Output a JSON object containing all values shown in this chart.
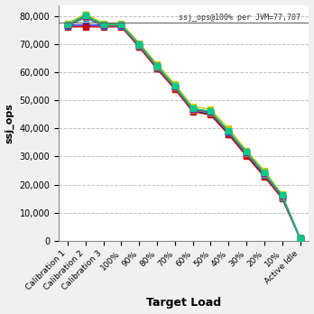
{
  "x_labels": [
    "Calibration 1",
    "Calibration 2",
    "Calibration 3",
    "100%",
    "90%",
    "80%",
    "70%",
    "60%",
    "50%",
    "40%",
    "30%",
    "20%",
    "10%",
    "Active Idle"
  ],
  "reference_line": 77707,
  "reference_label": "ssj_ops@100% per JVM=77,707",
  "ylabel": "ssj_ops",
  "xlabel": "Target Load",
  "ylim": [
    0,
    84000
  ],
  "yticks": [
    0,
    10000,
    20000,
    30000,
    40000,
    50000,
    60000,
    70000,
    80000
  ],
  "series": [
    {
      "color": "#0000cc",
      "values": [
        76800,
        76800,
        76800,
        76800,
        69200,
        61500,
        54200,
        46200,
        45200,
        38000,
        30500,
        23200,
        15200,
        800
      ]
    },
    {
      "color": "#cc0000",
      "values": [
        76200,
        76200,
        76200,
        76200,
        69000,
        61200,
        54000,
        46000,
        44800,
        37800,
        30200,
        22800,
        15000,
        750
      ]
    },
    {
      "color": "#00aa00",
      "values": [
        77200,
        80500,
        77200,
        77200,
        69800,
        62000,
        55000,
        47000,
        46000,
        39000,
        31500,
        24200,
        16000,
        900
      ]
    },
    {
      "color": "#cccc00",
      "values": [
        77500,
        80800,
        77500,
        77500,
        70500,
        63000,
        55800,
        47800,
        46800,
        40000,
        32200,
        25000,
        16500,
        950
      ]
    },
    {
      "color": "#0088cc",
      "values": [
        76500,
        79500,
        76500,
        76500,
        69500,
        61800,
        54500,
        46500,
        45500,
        38500,
        31000,
        23500,
        15500,
        820
      ]
    },
    {
      "color": "#cc8800",
      "values": [
        76700,
        79800,
        76700,
        76700,
        69700,
        62000,
        54700,
        46700,
        45700,
        38700,
        31200,
        23800,
        15800,
        860
      ]
    },
    {
      "color": "#8800cc",
      "values": [
        76900,
        80000,
        76900,
        76900,
        69900,
        62200,
        54900,
        46900,
        45900,
        38900,
        31400,
        24000,
        16000,
        870
      ]
    },
    {
      "color": "#00cc88",
      "values": [
        77000,
        80200,
        77000,
        77000,
        70000,
        62400,
        55100,
        47100,
        46100,
        39100,
        31600,
        24200,
        16200,
        890
      ]
    }
  ],
  "bg_color": "#f0f0f0",
  "plot_bg_color": "#ffffff",
  "grid_color": "#c0c0c0",
  "marker_size": 4,
  "line_width": 1.0
}
